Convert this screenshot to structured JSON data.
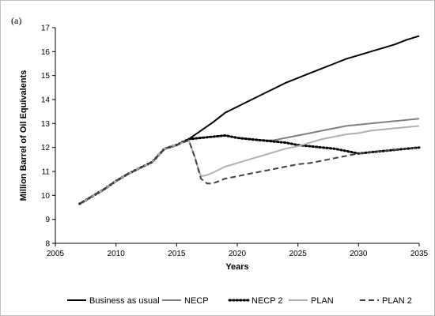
{
  "chart_data": {
    "type": "line",
    "panel_label": "(a)",
    "title": "",
    "xlabel": "Years",
    "ylabel": "Million Barrel of Oil Equivalents",
    "xlim": [
      2005,
      2035
    ],
    "ylim": [
      8,
      17
    ],
    "xticks": [
      2005,
      2010,
      2015,
      2020,
      2025,
      2030,
      2035
    ],
    "yticks": [
      8,
      9,
      10,
      11,
      12,
      13,
      14,
      15,
      16,
      17
    ],
    "grid": false,
    "legend_position": "bottom",
    "series": [
      {
        "name": "Business as usual",
        "color": "#000000",
        "dash": "solid",
        "x": [
          2007,
          2008,
          2009,
          2010,
          2011,
          2012,
          2013,
          2014,
          2015,
          2016,
          2017,
          2018,
          2019,
          2020,
          2021,
          2022,
          2023,
          2024,
          2025,
          2026,
          2027,
          2028,
          2029,
          2030,
          2031,
          2032,
          2033,
          2034,
          2035
        ],
        "y": [
          9.65,
          9.95,
          10.25,
          10.6,
          10.9,
          11.15,
          11.4,
          11.95,
          12.1,
          12.35,
          12.7,
          13.05,
          13.45,
          13.7,
          13.95,
          14.2,
          14.45,
          14.7,
          14.9,
          15.1,
          15.3,
          15.5,
          15.7,
          15.85,
          16.0,
          16.15,
          16.3,
          16.5,
          16.65
        ]
      },
      {
        "name": "NECP",
        "color": "#7f7f7f",
        "dash": "solid",
        "x": [
          2007,
          2008,
          2009,
          2010,
          2011,
          2012,
          2013,
          2014,
          2015,
          2016,
          2017,
          2018,
          2019,
          2020,
          2021,
          2022,
          2023,
          2024,
          2025,
          2026,
          2027,
          2028,
          2029,
          2030,
          2031,
          2032,
          2033,
          2034,
          2035
        ],
        "y": [
          9.65,
          9.95,
          10.25,
          10.6,
          10.9,
          11.15,
          11.4,
          11.95,
          12.1,
          12.35,
          12.4,
          12.45,
          12.5,
          12.4,
          12.35,
          12.3,
          12.3,
          12.4,
          12.5,
          12.6,
          12.7,
          12.8,
          12.9,
          12.95,
          13.0,
          13.05,
          13.1,
          13.15,
          13.2
        ]
      },
      {
        "name": "NECP 2",
        "color": "#000000",
        "dash": "dotted",
        "x": [
          2007,
          2008,
          2009,
          2010,
          2011,
          2012,
          2013,
          2014,
          2015,
          2016,
          2017,
          2018,
          2019,
          2020,
          2021,
          2022,
          2023,
          2024,
          2025,
          2026,
          2027,
          2028,
          2029,
          2030,
          2031,
          2032,
          2033,
          2034,
          2035
        ],
        "y": [
          9.65,
          9.95,
          10.25,
          10.6,
          10.9,
          11.15,
          11.4,
          11.95,
          12.1,
          12.35,
          12.4,
          12.45,
          12.5,
          12.4,
          12.35,
          12.3,
          12.25,
          12.2,
          12.1,
          12.05,
          12.0,
          11.95,
          11.85,
          11.75,
          11.8,
          11.85,
          11.9,
          11.95,
          12.0
        ]
      },
      {
        "name": "PLAN",
        "color": "#b0b0b0",
        "dash": "solid",
        "x": [
          2007,
          2008,
          2009,
          2010,
          2011,
          2012,
          2013,
          2014,
          2015,
          2016,
          2016.5,
          2017,
          2017.5,
          2018,
          2019,
          2020,
          2021,
          2022,
          2023,
          2024,
          2025,
          2026,
          2027,
          2028,
          2029,
          2030,
          2031,
          2032,
          2033,
          2034,
          2035
        ],
        "y": [
          9.65,
          9.95,
          10.25,
          10.6,
          10.9,
          11.15,
          11.4,
          11.95,
          12.1,
          12.3,
          11.6,
          10.8,
          10.85,
          10.95,
          11.2,
          11.35,
          11.5,
          11.65,
          11.8,
          11.95,
          12.05,
          12.2,
          12.35,
          12.45,
          12.55,
          12.6,
          12.7,
          12.75,
          12.8,
          12.85,
          12.9
        ]
      },
      {
        "name": "PLAN 2",
        "color": "#404040",
        "dash": "dashed",
        "x": [
          2007,
          2008,
          2009,
          2010,
          2011,
          2012,
          2013,
          2014,
          2015,
          2016,
          2016.5,
          2017,
          2017.5,
          2018,
          2019,
          2020,
          2021,
          2022,
          2023,
          2024,
          2025,
          2026,
          2027,
          2028,
          2029,
          2030,
          2031,
          2032,
          2033,
          2034,
          2035
        ],
        "y": [
          9.65,
          9.95,
          10.25,
          10.6,
          10.9,
          11.15,
          11.4,
          11.95,
          12.1,
          12.3,
          11.6,
          10.7,
          10.5,
          10.5,
          10.7,
          10.8,
          10.9,
          11.0,
          11.1,
          11.2,
          11.3,
          11.35,
          11.45,
          11.55,
          11.65,
          11.75,
          11.8,
          11.85,
          11.9,
          11.95,
          12.0
        ]
      }
    ]
  }
}
